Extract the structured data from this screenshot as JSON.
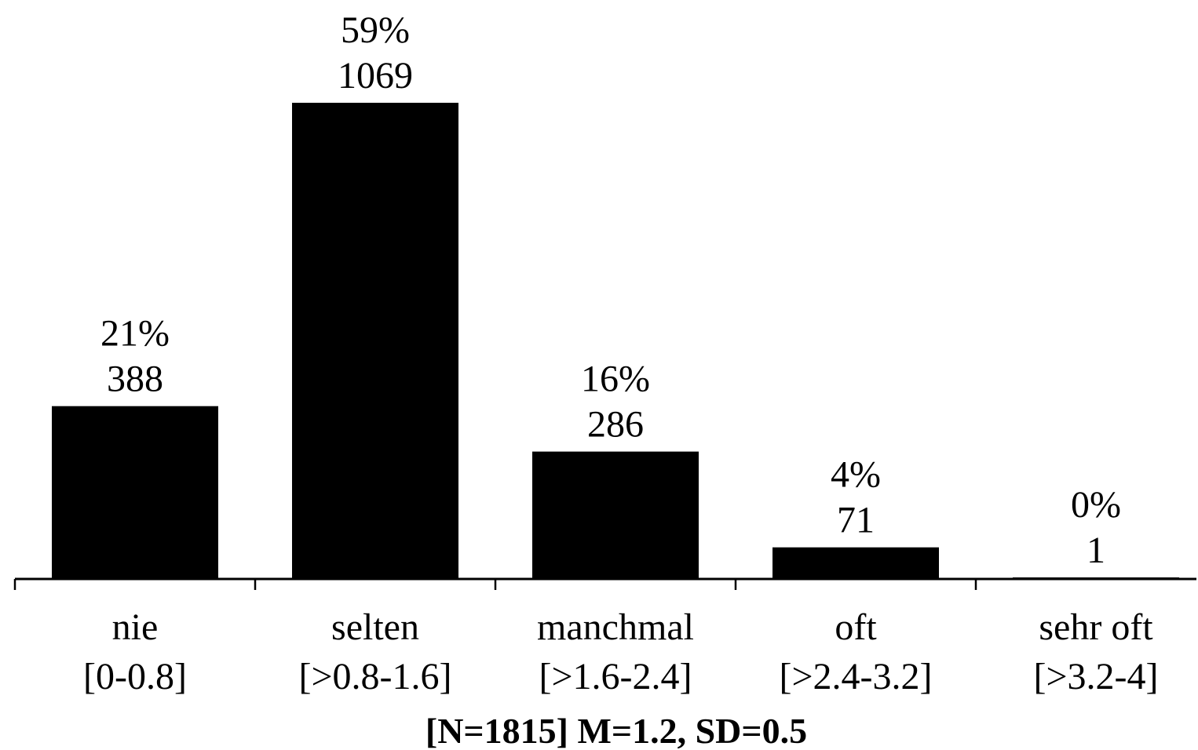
{
  "chart_data": {
    "type": "bar",
    "categories": [
      {
        "name": "nie",
        "range": "[0-0.8]"
      },
      {
        "name": "selten",
        "range": "[>0.8-1.6]"
      },
      {
        "name": "manchmal",
        "range": "[>1.6-2.4]"
      },
      {
        "name": "oft",
        "range": "[>2.4-3.2]"
      },
      {
        "name": "sehr oft",
        "range": "[>3.2-4]"
      }
    ],
    "values": [
      388,
      1069,
      286,
      71,
      1
    ],
    "percent_labels": [
      "21%",
      "59%",
      "16%",
      "4%",
      "0%"
    ],
    "count_labels": [
      "388",
      "1069",
      "286",
      "71",
      "1"
    ],
    "footer": "[N=1815] M=1.2, SD=0.5",
    "bar_color": "#000000",
    "ylim": [
      0,
      1069
    ],
    "grid": false,
    "legend": false
  }
}
